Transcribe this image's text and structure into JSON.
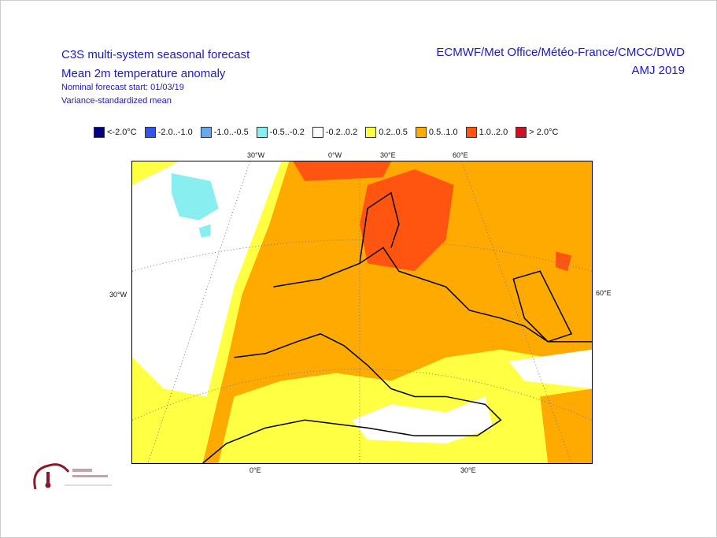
{
  "header": {
    "title": "C3S multi-system seasonal forecast",
    "subtitle": "Mean 2m temperature anomaly",
    "forecast_start": "Nominal forecast start: 01/03/19",
    "method": "Variance-standardized mean",
    "centres": "ECMWF/Met Office/Météo-France/CMCC/DWD",
    "period": "AMJ 2019"
  },
  "legend": [
    {
      "label": "<-2.0°C",
      "color": "#000080"
    },
    {
      "label": "-2.0..-1.0",
      "color": "#3355ee"
    },
    {
      "label": "-1.0..-0.5",
      "color": "#66aaee"
    },
    {
      "label": "-0.5..-0.2",
      "color": "#88eef0"
    },
    {
      "label": "-0.2..0.2",
      "color": "#ffffff"
    },
    {
      "label": "0.2..0.5",
      "color": "#ffff44"
    },
    {
      "label": "0.5..1.0",
      "color": "#ffaa00"
    },
    {
      "label": "1.0..2.0",
      "color": "#ff5511"
    },
    {
      "label": "> 2.0°C",
      "color": "#cc1122"
    }
  ],
  "axes": {
    "top": [
      "30°W",
      "0°W",
      "30°E",
      "60°E"
    ],
    "left": [
      "30°W"
    ],
    "right": [
      "60°E"
    ],
    "bottom": [
      "0°E",
      "30°E"
    ]
  },
  "logo": {
    "text": "Climate Change Service"
  }
}
